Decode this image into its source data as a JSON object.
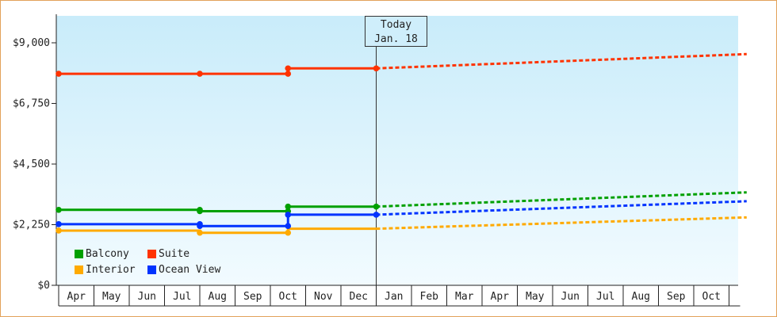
{
  "chart_data": {
    "type": "line",
    "title": "",
    "xlabel": "",
    "ylabel": "",
    "ylim": [
      0,
      10000
    ],
    "y_ticks": [
      "$0",
      "$2,250",
      "$4,500",
      "$6,750",
      "$9,000"
    ],
    "y_tick_values": [
      0,
      2250,
      4500,
      6750,
      9000
    ],
    "x_tick_labels": [
      "Apr",
      "May",
      "Jun",
      "Jul",
      "Aug",
      "Sep",
      "Oct",
      "Nov",
      "Dec",
      "Jan",
      "Feb",
      "Mar",
      "Apr",
      "May",
      "Jun",
      "Jul",
      "Aug",
      "Sep",
      "Oct"
    ],
    "today_marker": {
      "line1": "Today",
      "line2": "Jan. 18",
      "index": 9.0
    },
    "legend_placement": "bottom-left",
    "series": [
      {
        "name": "Suite",
        "color": "#ff3300",
        "history": [
          [
            0,
            7850
          ],
          [
            4,
            7850
          ],
          [
            6.5,
            7850
          ],
          [
            6.5,
            8050
          ],
          [
            9.0,
            8050
          ]
        ],
        "forecast": [
          [
            9.0,
            8050
          ],
          [
            19.5,
            8580
          ]
        ]
      },
      {
        "name": "Balcony",
        "color": "#00a000",
        "history": [
          [
            0,
            2800
          ],
          [
            4,
            2800
          ],
          [
            4,
            2750
          ],
          [
            6.5,
            2750
          ],
          [
            6.5,
            2920
          ],
          [
            9.0,
            2920
          ]
        ],
        "forecast": [
          [
            9.0,
            2920
          ],
          [
            19.5,
            3450
          ]
        ]
      },
      {
        "name": "Ocean View",
        "color": "#0033ff",
        "history": [
          [
            0,
            2270
          ],
          [
            4,
            2270
          ],
          [
            4,
            2200
          ],
          [
            6.5,
            2200
          ],
          [
            6.5,
            2620
          ],
          [
            9.0,
            2620
          ]
        ],
        "forecast": [
          [
            9.0,
            2620
          ],
          [
            19.5,
            3120
          ]
        ]
      },
      {
        "name": "Interior",
        "color": "#ffaa00",
        "history": [
          [
            0,
            2030
          ],
          [
            4,
            2030
          ],
          [
            4,
            1950
          ],
          [
            6.5,
            1950
          ],
          [
            6.5,
            2100
          ],
          [
            9.0,
            2100
          ]
        ],
        "forecast": [
          [
            9.0,
            2100
          ],
          [
            19.5,
            2520
          ]
        ]
      }
    ],
    "history_markers": [
      {
        "series": "Suite",
        "points": [
          [
            0,
            7850
          ],
          [
            4,
            7850
          ],
          [
            6.5,
            7850
          ],
          [
            6.5,
            8050
          ],
          [
            9.0,
            8050
          ]
        ]
      },
      {
        "series": "Balcony",
        "points": [
          [
            0,
            2800
          ],
          [
            4,
            2800
          ],
          [
            4,
            2750
          ],
          [
            6.5,
            2750
          ],
          [
            6.5,
            2920
          ],
          [
            9.0,
            2920
          ]
        ]
      },
      {
        "series": "Ocean View",
        "points": [
          [
            0,
            2270
          ],
          [
            4,
            2270
          ],
          [
            4,
            2200
          ],
          [
            6.5,
            2200
          ],
          [
            6.5,
            2620
          ],
          [
            9.0,
            2620
          ]
        ]
      },
      {
        "series": "Interior",
        "points": [
          [
            0,
            2030
          ],
          [
            4,
            1950
          ],
          [
            6.5,
            1950
          ]
        ]
      }
    ]
  },
  "legend": {
    "row1": [
      {
        "label": "Balcony",
        "color": "#00a000"
      },
      {
        "label": "Suite",
        "color": "#ff3300"
      }
    ],
    "row2": [
      {
        "label": "Interior",
        "color": "#ffaa00"
      },
      {
        "label": "Ocean View",
        "color": "#0033ff"
      }
    ]
  }
}
